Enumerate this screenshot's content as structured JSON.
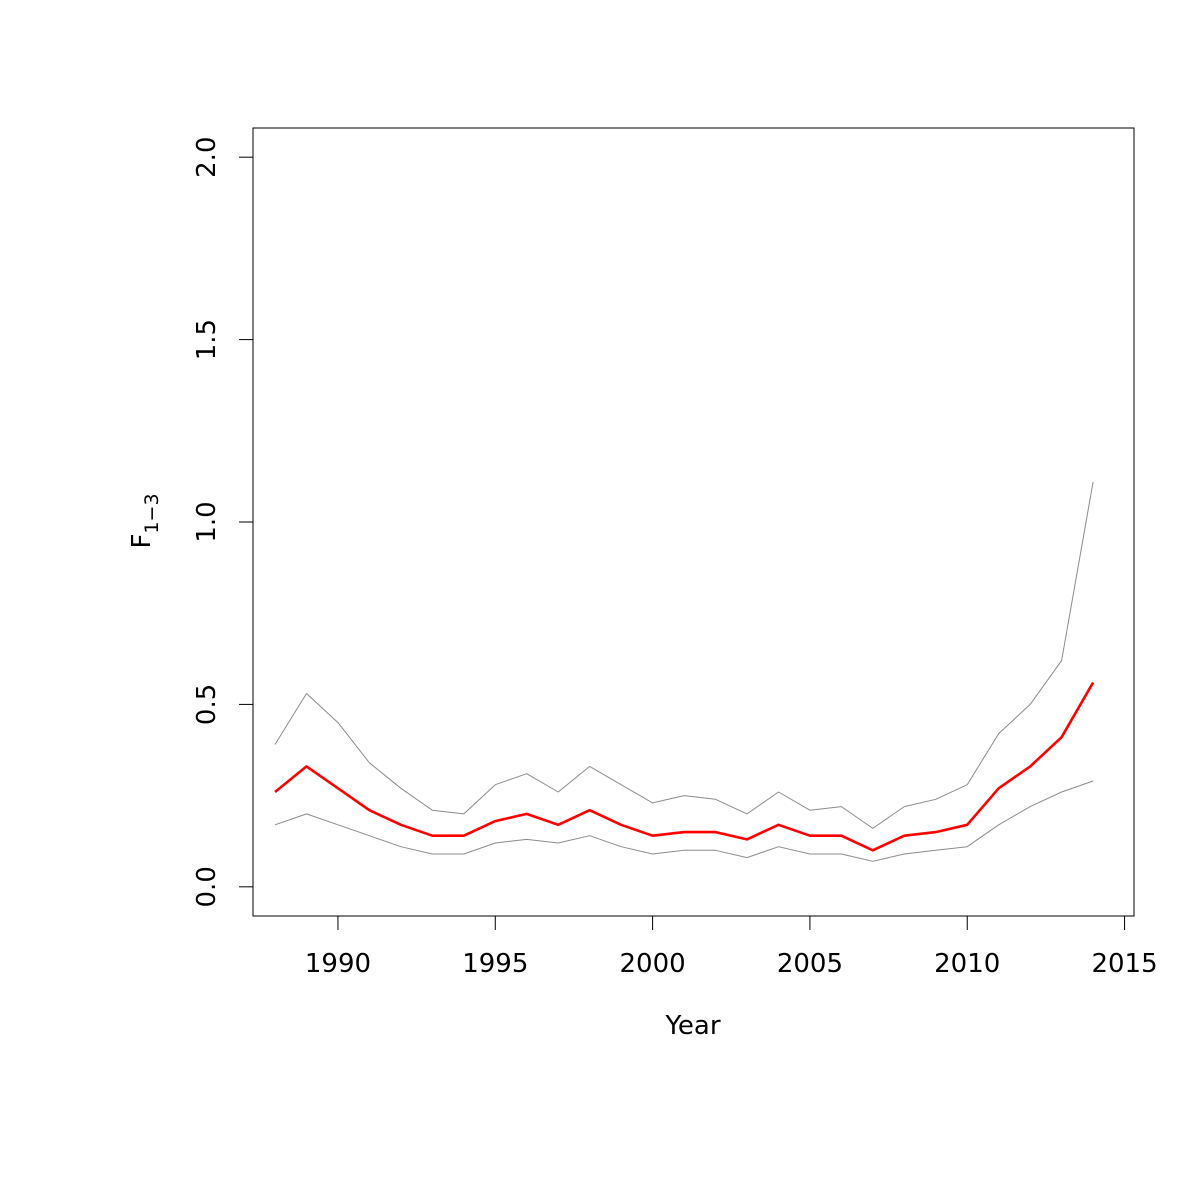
{
  "chart_data": {
    "type": "line",
    "xlabel": "Year",
    "ylabel": {
      "main": "F",
      "subscript": "1−3"
    },
    "xlim": [
      1987.3,
      2015.3
    ],
    "ylim": [
      -0.08,
      2.08
    ],
    "xticks": [
      1990,
      1995,
      2000,
      2005,
      2010,
      2015
    ],
    "yticks": [
      0.0,
      0.5,
      1.0,
      1.5,
      2.0
    ],
    "xtick_labels": [
      "1990",
      "1995",
      "2000",
      "2005",
      "2010",
      "2015"
    ],
    "ytick_labels": [
      "0.0",
      "0.5",
      "1.0",
      "1.5",
      "2.0"
    ],
    "grid": false,
    "x": [
      1988,
      1989,
      1990,
      1991,
      1992,
      1993,
      1994,
      1995,
      1996,
      1997,
      1998,
      1999,
      2000,
      2001,
      2002,
      2003,
      2004,
      2005,
      2006,
      2007,
      2008,
      2009,
      2010,
      2011,
      2012,
      2013,
      2014
    ],
    "series": [
      {
        "role": "upper",
        "color": "#8c8c8c",
        "values": [
          0.39,
          0.53,
          0.45,
          0.34,
          0.27,
          0.21,
          0.2,
          0.28,
          0.31,
          0.26,
          0.33,
          0.28,
          0.23,
          0.25,
          0.24,
          0.2,
          0.26,
          0.21,
          0.22,
          0.16,
          0.22,
          0.24,
          0.28,
          0.42,
          0.5,
          0.62,
          1.11
        ]
      },
      {
        "role": "estimate",
        "color": "#ff0000",
        "values": [
          0.26,
          0.33,
          0.27,
          0.21,
          0.17,
          0.14,
          0.14,
          0.18,
          0.2,
          0.17,
          0.21,
          0.17,
          0.14,
          0.15,
          0.15,
          0.13,
          0.17,
          0.14,
          0.14,
          0.1,
          0.14,
          0.15,
          0.17,
          0.27,
          0.33,
          0.41,
          0.56
        ]
      },
      {
        "role": "lower",
        "color": "#8c8c8c",
        "values": [
          0.17,
          0.2,
          0.17,
          0.14,
          0.11,
          0.09,
          0.09,
          0.12,
          0.13,
          0.12,
          0.14,
          0.11,
          0.09,
          0.1,
          0.1,
          0.08,
          0.11,
          0.09,
          0.09,
          0.07,
          0.09,
          0.1,
          0.11,
          0.17,
          0.22,
          0.26,
          0.29
        ]
      }
    ]
  }
}
